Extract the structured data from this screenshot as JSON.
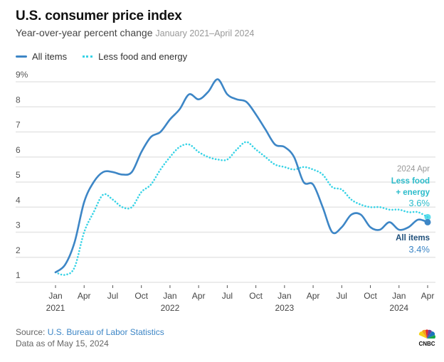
{
  "header": {
    "title": "U.S. consumer price index",
    "subtitle": "Year-over-year percent change",
    "date_range": "January 2021–April 2024"
  },
  "legend": {
    "all_items": "All items",
    "core": "Less food and energy"
  },
  "annotations": {
    "date": "2024 Apr",
    "core_label_1": "Less food",
    "core_label_2": "+ energy",
    "core_value": "3.6%",
    "all_label": "All items",
    "all_value": "3.4%"
  },
  "footer": {
    "source_prefix": "Source: ",
    "source_name": "U.S. Bureau of Labor Statistics",
    "data_as_of": "Data as of May 15, 2024"
  },
  "logo": {
    "text": "CNBC"
  },
  "colors": {
    "all_items": "#3d86c6",
    "core": "#37d3e6",
    "grid": "#e6e6e6"
  },
  "chart_data": {
    "type": "line",
    "title": "U.S. consumer price index",
    "subtitle": "Year-over-year percent change, January 2021–April 2024",
    "xlabel": "",
    "ylabel": "",
    "ylim": [
      1,
      9
    ],
    "yticks": [
      1,
      2,
      3,
      4,
      5,
      6,
      7,
      8,
      9
    ],
    "ytick_labels": [
      "1",
      "2",
      "3",
      "4",
      "5",
      "6",
      "7",
      "8",
      "9%"
    ],
    "grid": true,
    "legend_position": "top-left",
    "xtick_labels": [
      {
        "month": "Jan",
        "year": "2021"
      },
      {
        "month": "Apr",
        "year": ""
      },
      {
        "month": "Jul",
        "year": ""
      },
      {
        "month": "Oct",
        "year": ""
      },
      {
        "month": "Jan",
        "year": "2022"
      },
      {
        "month": "Apr",
        "year": ""
      },
      {
        "month": "Jul",
        "year": ""
      },
      {
        "month": "Oct",
        "year": ""
      },
      {
        "month": "Jan",
        "year": "2023"
      },
      {
        "month": "Apr",
        "year": ""
      },
      {
        "month": "Jul",
        "year": ""
      },
      {
        "month": "Oct",
        "year": ""
      },
      {
        "month": "Jan",
        "year": "2024"
      },
      {
        "month": "Apr",
        "year": ""
      }
    ],
    "x": [
      "2021-01",
      "2021-02",
      "2021-03",
      "2021-04",
      "2021-05",
      "2021-06",
      "2021-07",
      "2021-08",
      "2021-09",
      "2021-10",
      "2021-11",
      "2021-12",
      "2022-01",
      "2022-02",
      "2022-03",
      "2022-04",
      "2022-05",
      "2022-06",
      "2022-07",
      "2022-08",
      "2022-09",
      "2022-10",
      "2022-11",
      "2022-12",
      "2023-01",
      "2023-02",
      "2023-03",
      "2023-04",
      "2023-05",
      "2023-06",
      "2023-07",
      "2023-08",
      "2023-09",
      "2023-10",
      "2023-11",
      "2023-12",
      "2024-01",
      "2024-02",
      "2024-03",
      "2024-04"
    ],
    "series": [
      {
        "name": "All items",
        "style": "solid",
        "values": [
          1.4,
          1.7,
          2.6,
          4.2,
          5.0,
          5.4,
          5.4,
          5.3,
          5.4,
          6.2,
          6.8,
          7.0,
          7.5,
          7.9,
          8.5,
          8.3,
          8.6,
          9.1,
          8.5,
          8.3,
          8.2,
          7.7,
          7.1,
          6.5,
          6.4,
          6.0,
          5.0,
          4.9,
          4.0,
          3.0,
          3.2,
          3.7,
          3.7,
          3.2,
          3.1,
          3.4,
          3.1,
          3.2,
          3.5,
          3.4
        ]
      },
      {
        "name": "Less food and energy",
        "style": "dotted",
        "values": [
          1.4,
          1.3,
          1.6,
          3.0,
          3.8,
          4.5,
          4.3,
          4.0,
          4.0,
          4.6,
          4.9,
          5.5,
          6.0,
          6.4,
          6.5,
          6.2,
          6.0,
          5.9,
          5.9,
          6.3,
          6.6,
          6.3,
          6.0,
          5.7,
          5.6,
          5.5,
          5.6,
          5.5,
          5.3,
          4.8,
          4.7,
          4.3,
          4.1,
          4.0,
          4.0,
          3.9,
          3.9,
          3.8,
          3.8,
          3.6
        ]
      }
    ]
  }
}
